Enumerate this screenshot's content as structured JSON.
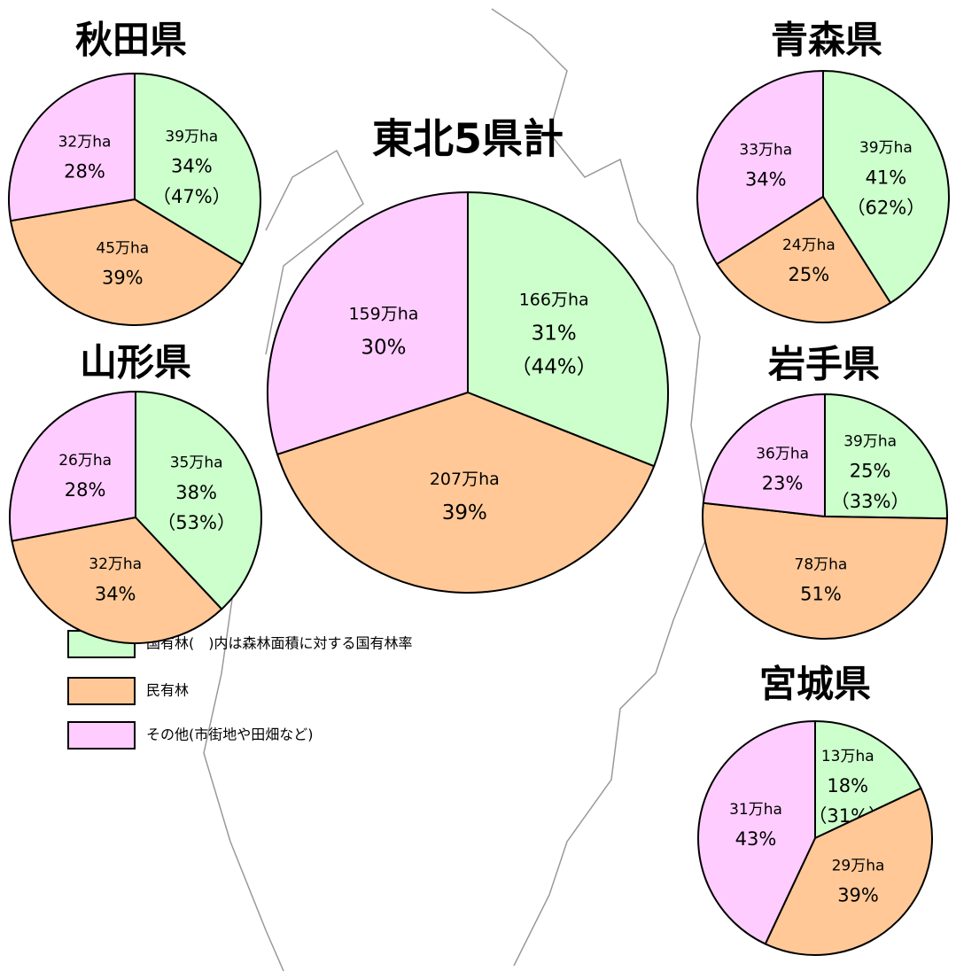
{
  "legend": [
    {
      "name": "国有林(　)内は森林面積に対する国有林率",
      "color": "#ccffcc"
    },
    {
      "name": "民有林",
      "color": "#ffc896"
    },
    {
      "name": "その他(市街地や田畑など)",
      "color": "#ffccff"
    }
  ],
  "chart_data": [
    {
      "type": "pie",
      "title": "秋田県",
      "values": [
        34,
        39,
        28
      ],
      "value_labels": [
        "34%",
        "39%",
        "28%"
      ],
      "areas": [
        39,
        45,
        32
      ],
      "area_labels": [
        "39万ha",
        "45万ha",
        "32万ha"
      ],
      "ratio": 47,
      "ratio_label": "（47%）"
    },
    {
      "type": "pie",
      "title": "青森県",
      "values": [
        41,
        25,
        34
      ],
      "value_labels": [
        "41%",
        "25%",
        "34%"
      ],
      "areas": [
        39,
        24,
        33
      ],
      "area_labels": [
        "39万ha",
        "24万ha",
        "33万ha"
      ],
      "ratio": 62,
      "ratio_label": "（62%）"
    },
    {
      "type": "pie",
      "title": "東北5県計",
      "values": [
        31,
        39,
        30
      ],
      "value_labels": [
        "31%",
        "39%",
        "30%"
      ],
      "areas": [
        166,
        207,
        159
      ],
      "area_labels": [
        "166万ha",
        "207万ha",
        "159万ha"
      ],
      "ratio": 44,
      "ratio_label": "（44%）"
    },
    {
      "type": "pie",
      "title": "山形県",
      "values": [
        38,
        34,
        28
      ],
      "value_labels": [
        "38%",
        "34%",
        "28%"
      ],
      "areas": [
        35,
        32,
        26
      ],
      "area_labels": [
        "35万ha",
        "32万ha",
        "26万ha"
      ],
      "ratio": 53,
      "ratio_label": "（53%）"
    },
    {
      "type": "pie",
      "title": "岩手県",
      "values": [
        25,
        51,
        23
      ],
      "value_labels": [
        "25%",
        "51%",
        "23%"
      ],
      "areas": [
        39,
        78,
        36
      ],
      "area_labels": [
        "39万ha",
        "78万ha",
        "36万ha"
      ],
      "ratio": 33,
      "ratio_label": "（33%）"
    },
    {
      "type": "pie",
      "title": "宮城県",
      "values": [
        18,
        39,
        43
      ],
      "value_labels": [
        "18%",
        "39%",
        "43%"
      ],
      "areas": [
        13,
        29,
        31
      ],
      "area_labels": [
        "13万ha",
        "29万ha",
        "31万ha"
      ],
      "ratio": 31,
      "ratio_label": "（31%）"
    }
  ]
}
